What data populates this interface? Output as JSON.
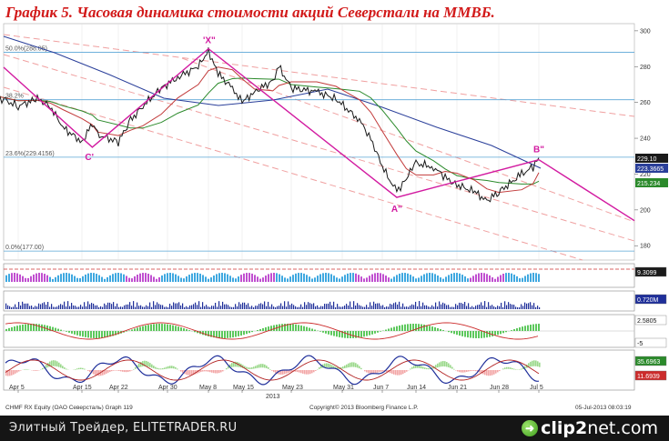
{
  "chart_data": {
    "type": "line",
    "title": "График 5.   Часовая динамика стоимости акций Северстали на ММВБ.",
    "x_ticks": [
      "Apr 5",
      "Apr 15",
      "Apr 22",
      "Apr 30",
      "May 8",
      "May 15",
      "May 23",
      "May 31",
      "Jun 7",
      "Jun 14",
      "Jun 21",
      "Jun 28",
      "Jul 5"
    ],
    "x_year": "2013",
    "y_ticks": [
      180,
      200,
      220,
      240,
      260,
      280,
      300
    ],
    "ylim": [
      172,
      304
    ],
    "fib_levels": [
      {
        "label": "50.0%(288.05)",
        "value": 288.05
      },
      {
        "label": "38.2%",
        "value": 261.5
      },
      {
        "label": "23.6%(229.4156)",
        "value": 229.4156
      },
      {
        "label": "0.0%(177.00)",
        "value": 177.0
      }
    ],
    "price_path": [
      {
        "x": "Apr 1",
        "y": 264
      },
      {
        "x": "Apr 3",
        "y": 261
      },
      {
        "x": "Apr 5",
        "y": 258
      },
      {
        "x": "Apr 8",
        "y": 262
      },
      {
        "x": "Apr 10",
        "y": 258
      },
      {
        "x": "Apr 12",
        "y": 246
      },
      {
        "x": "Apr 15",
        "y": 238
      },
      {
        "x": "Apr 17",
        "y": 248
      },
      {
        "x": "Apr 18",
        "y": 242
      },
      {
        "x": "Apr 22",
        "y": 238
      },
      {
        "x": "Apr 24",
        "y": 250
      },
      {
        "x": "Apr 26",
        "y": 258
      },
      {
        "x": "Apr 29",
        "y": 268
      },
      {
        "x": "May 2",
        "y": 274
      },
      {
        "x": "May 6",
        "y": 280
      },
      {
        "x": "May 8",
        "y": 289
      },
      {
        "x": "May 10",
        "y": 276
      },
      {
        "x": "May 13",
        "y": 268
      },
      {
        "x": "May 15",
        "y": 260
      },
      {
        "x": "May 17",
        "y": 266
      },
      {
        "x": "May 20",
        "y": 272
      },
      {
        "x": "May 21",
        "y": 280
      },
      {
        "x": "May 23",
        "y": 268
      },
      {
        "x": "May 27",
        "y": 266
      },
      {
        "x": "May 30",
        "y": 262
      },
      {
        "x": "Jun 3",
        "y": 250
      },
      {
        "x": "Jun 5",
        "y": 240
      },
      {
        "x": "Jun 7",
        "y": 224
      },
      {
        "x": "Jun 10",
        "y": 210
      },
      {
        "x": "Jun 12",
        "y": 218
      },
      {
        "x": "Jun 14",
        "y": 226
      },
      {
        "x": "Jun 17",
        "y": 224
      },
      {
        "x": "Jun 19",
        "y": 218
      },
      {
        "x": "Jun 21",
        "y": 214
      },
      {
        "x": "Jun 24",
        "y": 210
      },
      {
        "x": "Jun 26",
        "y": 205
      },
      {
        "x": "Jun 28",
        "y": 210
      },
      {
        "x": "Jul 2",
        "y": 220
      },
      {
        "x": "Jul 4",
        "y": 224
      },
      {
        "x": "Jul 5",
        "y": 229.1
      }
    ],
    "wave_points": [
      {
        "label": "C'",
        "x": "Apr 17",
        "y": 235
      },
      {
        "label": "'X\"",
        "x": "May 8",
        "y": 290
      },
      {
        "label": "A\"",
        "x": "Jun 10",
        "y": 207
      },
      {
        "label": "B\"",
        "x": "Jul 5",
        "y": 228
      }
    ],
    "value_tags": [
      {
        "label": "229.10",
        "color": "#1a1a1a"
      },
      {
        "label": "223.3665",
        "color": "#2a3f9a"
      },
      {
        "label": "215.234",
        "color": "#2b8a2b"
      }
    ],
    "indicator_tags": [
      "9.3099",
      "0.720M",
      "2.5805",
      "-5",
      "35.6963",
      "11.6939"
    ],
    "footer": {
      "left": "CHMF RX Equity (OAO Северсталь) Graph 119",
      "center": "Copyright© 2013 Bloomberg Finance L.P.",
      "right": "05-Jul-2013 08:03:19"
    },
    "colors": {
      "price": "#1a1a1a",
      "ma_long": "#2a3f9a",
      "ma_mid": "#2b8a2b",
      "ma_short": "#c23b3b",
      "wave": "#d21aa0",
      "channel": "#f0a0a0"
    }
  },
  "bottom_bar": {
    "brand": "Элитный Трейдер, ELITETRADER.RU",
    "logo_icon": "arrow-icon",
    "logo_name": "clip2",
    "logo_tld": "net.com"
  }
}
